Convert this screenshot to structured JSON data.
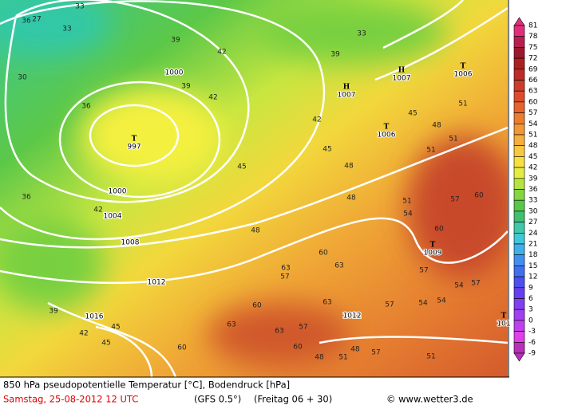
{
  "footer": {
    "line1": "850 hPa pseudopotentielle Temperatur [°C], Bodendruck [hPa]",
    "date": "Samstag, 25-08-2012  12 UTC",
    "model": "(GFS 0.5°)",
    "run": "(Freitag 06 + 30)",
    "credit": "© www.wetter3.de"
  },
  "colorbar": {
    "levels": [
      81,
      78,
      75,
      72,
      69,
      66,
      63,
      60,
      57,
      54,
      51,
      48,
      45,
      42,
      39,
      36,
      33,
      30,
      27,
      24,
      21,
      18,
      15,
      12,
      9,
      6,
      3,
      0,
      -3,
      -6,
      -9
    ],
    "colors": [
      "#e0307a",
      "#b81e50",
      "#9c1830",
      "#ac2020",
      "#bc2c28",
      "#cc3c2c",
      "#dc4c2c",
      "#e6642c",
      "#ee7c30",
      "#f29636",
      "#f6ae3c",
      "#f8c840",
      "#f6e040",
      "#e4ee40",
      "#b4e440",
      "#84d640",
      "#58c848",
      "#40c070",
      "#40c8a8",
      "#40c8d8",
      "#40b0ec",
      "#4090f0",
      "#4070f0",
      "#4c50f0",
      "#6440f0",
      "#8040f0",
      "#a040f0",
      "#c040f0",
      "#e040e8",
      "#b830b8"
    ]
  },
  "pressure_systems": [
    {
      "symbol": "T",
      "value": "997"
    },
    {
      "symbol": "T",
      "value": "1006"
    },
    {
      "symbol": "H",
      "value": "1007"
    },
    {
      "symbol": "H",
      "value": "1007"
    },
    {
      "symbol": "T",
      "value": "1006"
    },
    {
      "symbol": "T",
      "value": "1009"
    },
    {
      "symbol": "T",
      "value": "101"
    }
  ],
  "isobar_labels": [
    "1000",
    "1000",
    "1004",
    "1008",
    "1012",
    "1016",
    "1012"
  ],
  "temperature_labels": [
    "27",
    "33",
    "36",
    "30",
    "33",
    "39",
    "42",
    "36",
    "39",
    "33",
    "39",
    "42",
    "45",
    "42",
    "45",
    "48",
    "48",
    "51",
    "51",
    "45",
    "48",
    "36",
    "42",
    "48",
    "54",
    "57",
    "51",
    "60",
    "63",
    "57",
    "63",
    "60",
    "60",
    "63",
    "57",
    "54",
    "54",
    "57",
    "60",
    "51",
    "57",
    "54",
    "48",
    "45",
    "39",
    "42",
    "45",
    "57",
    "51",
    "51",
    "48",
    "60",
    "63",
    "63",
    "60",
    "57"
  ]
}
